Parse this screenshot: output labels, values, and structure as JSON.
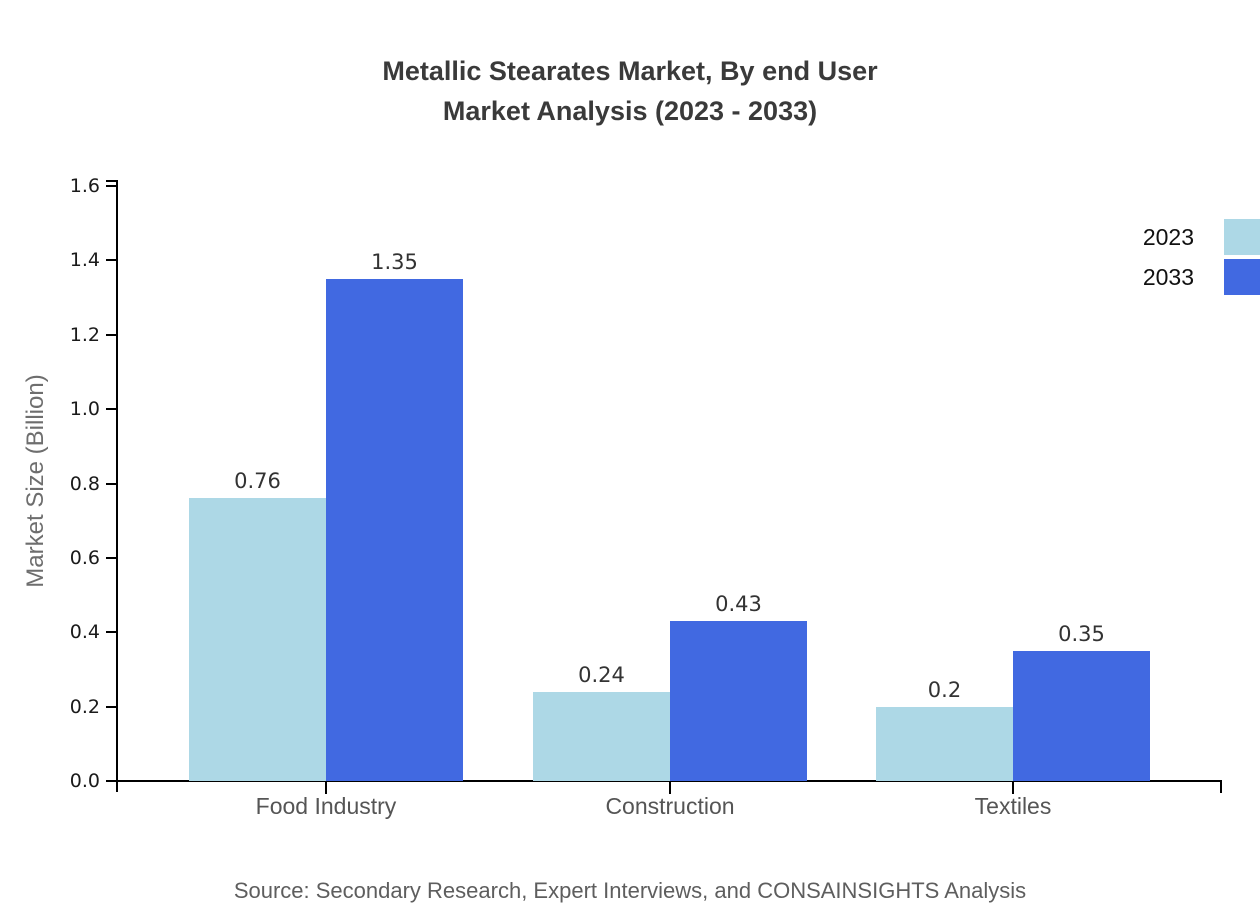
{
  "title": {
    "line1": "Metallic Stearates Market, By end User",
    "line2": "Market Analysis (2023 - 2033)"
  },
  "source_note": "Source: Secondary Research, Expert Interviews, and CONSAINSIGHTS Analysis",
  "chart_data": {
    "type": "bar",
    "title": "Metallic Stearates Market, By end User Market Analysis (2023 - 2033)",
    "categories": [
      "Food Industry",
      "Construction",
      "Textiles"
    ],
    "series": [
      {
        "name": "2023",
        "color": "#add8e6",
        "values": [
          0.76,
          0.24,
          0.2
        ]
      },
      {
        "name": "2033",
        "color": "#4169e1",
        "values": [
          1.35,
          0.43,
          0.35
        ]
      }
    ],
    "xlabel": "",
    "ylabel": "Market Size (Billion)",
    "ylim": [
      0.0,
      1.6
    ],
    "ytick_step": 0.2,
    "ytick_labels": [
      "0.0",
      "0.2",
      "0.4",
      "0.6",
      "0.8",
      "1.0",
      "1.2",
      "1.4",
      "1.6"
    ],
    "grid": false,
    "legend_position": "top-right",
    "bar_value_labels": true
  }
}
